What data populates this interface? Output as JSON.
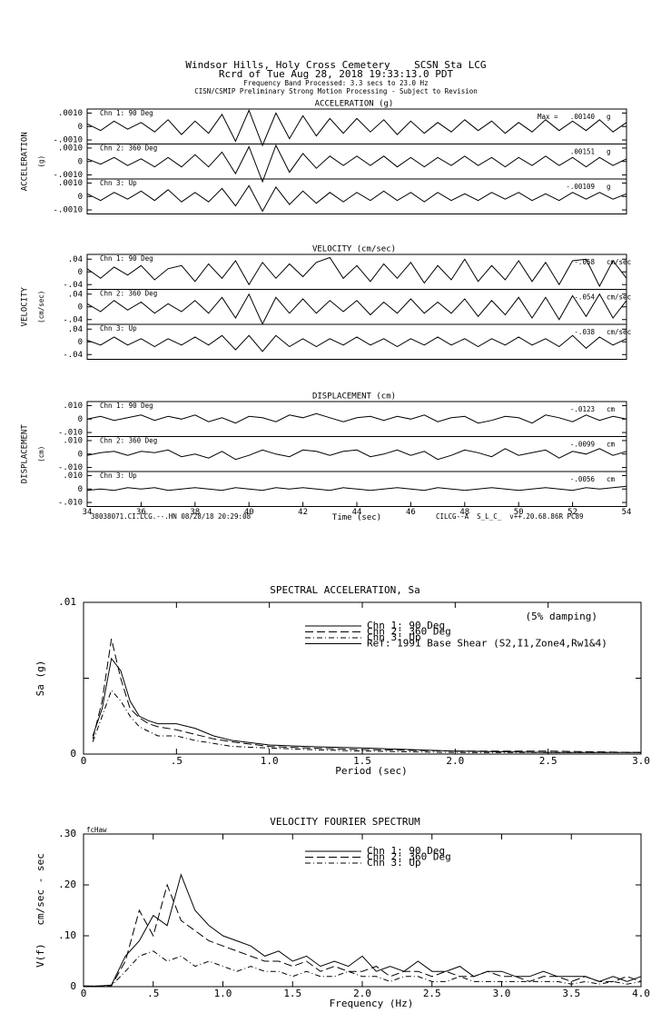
{
  "header": {
    "lines": [
      "Windsor Hills, Holy Cross Cemetery    SCSN Sta LCG",
      "Rcrd of Tue Aug 28, 2018 19:33:13.0 PDT",
      "Frequency Band Processed: 3.3 secs to 23.0 Hz",
      "CISN/CSMIP Preliminary Strong Motion Processing - Subject to Revision"
    ]
  },
  "footer": {
    "left": "38038071.CI.LCG.--.HN 08/28/18 20:29:08",
    "right": "CILCG--A  S_L_C_  v++.20.68.86R PC89"
  },
  "chart_data": [
    {
      "type": "trace",
      "title": "ACCELERATION (g)",
      "ylabel": "ACCELERATION",
      "yunit": "(g)",
      "peak_prefix": "Max =",
      "unit": "g",
      "ylim": [
        -0.0013,
        0.0013
      ],
      "yticks": [
        {
          "value": 0.001,
          "label": ".0010"
        },
        0,
        {
          "value": -0.001,
          "label": "-.0010"
        }
      ],
      "xlim": [
        34,
        54
      ],
      "x": [
        34,
        34.5,
        35,
        35.5,
        36,
        36.5,
        37,
        37.5,
        38,
        38.5,
        39,
        39.5,
        40,
        40.5,
        41,
        41.5,
        42,
        42.5,
        43,
        43.5,
        44,
        44.5,
        45,
        45.5,
        46,
        46.5,
        47,
        47.5,
        48,
        48.5,
        49,
        49.5,
        50,
        50.5,
        51,
        51.5,
        52,
        52.5,
        53,
        53.5,
        54
      ],
      "panels": [
        {
          "name": "Chn 1: 90 Deg",
          "peak": ".00140",
          "values": [
            0.0002,
            -0.0003,
            0.0004,
            -0.0002,
            0.0003,
            -0.0004,
            0.0005,
            -0.0006,
            0.0004,
            -0.0005,
            0.0009,
            -0.0011,
            0.0012,
            -0.0014,
            0.001,
            -0.0009,
            0.0008,
            -0.0007,
            0.0006,
            -0.0005,
            0.0006,
            -0.0004,
            0.0005,
            -0.0006,
            0.0004,
            -0.0005,
            0.0003,
            -0.0004,
            0.0005,
            -0.0003,
            0.0004,
            -0.0005,
            0.0003,
            -0.0004,
            0.0005,
            -0.0003,
            0.0004,
            -0.0003,
            0.0005,
            -0.0004,
            0.0003
          ]
        },
        {
          "name": "Chn 2: 360 Deg",
          "peak": ".00151",
          "values": [
            0.0002,
            -0.0002,
            0.0003,
            -0.0003,
            0.0002,
            -0.0004,
            0.0003,
            -0.0004,
            0.0005,
            -0.0004,
            0.0007,
            -0.0009,
            0.0011,
            -0.0015,
            0.0012,
            -0.0008,
            0.0006,
            -0.0005,
            0.0004,
            -0.0003,
            0.0004,
            -0.0003,
            0.0004,
            -0.0004,
            0.0003,
            -0.0004,
            0.0003,
            -0.0003,
            0.0004,
            -0.0003,
            0.0003,
            -0.0004,
            0.0003,
            -0.0003,
            0.0004,
            -0.0003,
            0.0003,
            -0.0004,
            0.0003,
            -0.0003,
            0.0002
          ]
        },
        {
          "name": "Chn 3: Up",
          "peak": "-.00109",
          "values": [
            0.0002,
            -0.0003,
            0.0003,
            -0.0002,
            0.0004,
            -0.0003,
            0.0005,
            -0.0004,
            0.0003,
            -0.0004,
            0.0006,
            -0.0007,
            0.0008,
            -0.0011,
            0.0007,
            -0.0006,
            0.0004,
            -0.0005,
            0.0003,
            -0.0004,
            0.0003,
            -0.0003,
            0.0004,
            -0.0003,
            0.0003,
            -0.0004,
            0.0003,
            -0.0003,
            0.0002,
            -0.0003,
            0.0003,
            -0.0002,
            0.0003,
            -0.0003,
            0.0002,
            -0.0003,
            0.0003,
            -0.0002,
            0.0003,
            -0.0002,
            0.0002
          ]
        }
      ]
    },
    {
      "type": "trace",
      "title": "VELOCITY (cm/sec)",
      "ylabel": "VELOCITY",
      "yunit": "(cm/sec)",
      "unit": "cm/sec",
      "ylim": [
        -0.055,
        0.055
      ],
      "yticks": [
        {
          "value": 0.04,
          "label": ".04"
        },
        0,
        {
          "value": -0.04,
          "label": "-.04"
        }
      ],
      "xlim": [
        34,
        54
      ],
      "x": [
        34,
        34.5,
        35,
        35.5,
        36,
        36.5,
        37,
        37.5,
        38,
        38.5,
        39,
        39.5,
        40,
        40.5,
        41,
        41.5,
        42,
        42.5,
        43,
        43.5,
        44,
        44.5,
        45,
        45.5,
        46,
        46.5,
        47,
        47.5,
        48,
        48.5,
        49,
        49.5,
        50,
        50.5,
        51,
        51.5,
        52,
        52.5,
        53,
        53.5,
        54
      ],
      "panels": [
        {
          "name": "Chn 1: 90 Deg",
          "peak": "-.058",
          "values": [
            0.01,
            -0.02,
            0.015,
            -0.01,
            0.02,
            -0.025,
            0.01,
            0.02,
            -0.03,
            0.025,
            -0.02,
            0.035,
            -0.04,
            0.03,
            -0.02,
            0.025,
            -0.015,
            0.03,
            0.045,
            -0.02,
            0.02,
            -0.03,
            0.025,
            -0.02,
            0.03,
            -0.035,
            0.02,
            -0.025,
            0.04,
            -0.03,
            0.02,
            -0.025,
            0.035,
            -0.03,
            0.03,
            -0.04,
            0.035,
            0.04,
            -0.045,
            0.035,
            -0.02
          ]
        },
        {
          "name": "Chn 2: 360 Deg",
          "peak": "-.054",
          "values": [
            0.01,
            -0.015,
            0.02,
            -0.01,
            0.015,
            -0.02,
            0.01,
            -0.015,
            0.02,
            -0.02,
            0.03,
            -0.035,
            0.04,
            -0.054,
            0.03,
            -0.02,
            0.025,
            -0.02,
            0.02,
            -0.015,
            0.02,
            -0.025,
            0.015,
            -0.02,
            0.025,
            -0.02,
            0.015,
            -0.02,
            0.025,
            -0.03,
            0.02,
            -0.025,
            0.03,
            -0.035,
            0.03,
            -0.04,
            0.035,
            -0.03,
            0.04,
            -0.035,
            0.02
          ]
        },
        {
          "name": "Chn 3: Up",
          "peak": "-.038",
          "values": [
            0.005,
            -0.01,
            0.015,
            -0.01,
            0.01,
            -0.015,
            0.01,
            -0.01,
            0.015,
            -0.01,
            0.02,
            -0.025,
            0.02,
            -0.03,
            0.02,
            -0.015,
            0.01,
            -0.015,
            0.01,
            -0.01,
            0.015,
            -0.01,
            0.01,
            -0.015,
            0.01,
            -0.01,
            0.015,
            -0.01,
            0.01,
            -0.015,
            0.01,
            -0.01,
            0.015,
            -0.01,
            0.01,
            -0.015,
            0.02,
            -0.02,
            0.015,
            -0.01,
            0.01
          ]
        }
      ]
    },
    {
      "type": "trace",
      "title": "DISPLACEMENT (cm)",
      "ylabel": "DISPLACEMENT",
      "yunit": "(cm)",
      "unit": "cm",
      "ylim": [
        -0.013,
        0.013
      ],
      "yticks": [
        {
          "value": 0.01,
          "label": ".010"
        },
        0,
        {
          "value": -0.01,
          "label": "-.010"
        }
      ],
      "xlim": [
        34,
        54
      ],
      "xticks": [
        34,
        36,
        38,
        40,
        42,
        44,
        46,
        48,
        50,
        52,
        54
      ],
      "xlabel": "Time (sec)",
      "x": [
        34,
        34.5,
        35,
        35.5,
        36,
        36.5,
        37,
        37.5,
        38,
        38.5,
        39,
        39.5,
        40,
        40.5,
        41,
        41.5,
        42,
        42.5,
        43,
        43.5,
        44,
        44.5,
        45,
        45.5,
        46,
        46.5,
        47,
        47.5,
        48,
        48.5,
        49,
        49.5,
        50,
        50.5,
        51,
        51.5,
        52,
        52.5,
        53,
        53.5,
        54
      ],
      "panels": [
        {
          "name": "Chn 1: 90 Deg",
          "peak": "-.0123",
          "values": [
            0,
            0.002,
            -0.001,
            0.001,
            0.003,
            -0.001,
            0.002,
            0,
            0.003,
            -0.002,
            0.001,
            -0.003,
            0.002,
            0.001,
            -0.002,
            0.003,
            0.001,
            0.004,
            0.001,
            -0.002,
            0.001,
            0.002,
            -0.001,
            0.002,
            0,
            0.003,
            -0.002,
            0.001,
            0.002,
            -0.003,
            -0.001,
            0.002,
            0.001,
            -0.003,
            0.003,
            0.001,
            -0.002,
            0.003,
            -0.001,
            0.002,
            0
          ]
        },
        {
          "name": "Chn 2: 360 Deg",
          "peak": "-.0099",
          "values": [
            -0.001,
            0.001,
            0.002,
            -0.001,
            0.002,
            0.001,
            0.003,
            -0.002,
            0,
            -0.003,
            0.002,
            -0.004,
            -0.001,
            0.003,
            0,
            -0.002,
            0.003,
            0.002,
            -0.001,
            0.002,
            0.003,
            -0.002,
            0,
            0.003,
            -0.001,
            0.002,
            -0.004,
            -0.001,
            0.003,
            0.001,
            -0.002,
            0.004,
            -0.001,
            0.001,
            0.003,
            -0.003,
            0.002,
            0,
            0.004,
            -0.001,
            0.002
          ]
        },
        {
          "name": "Chn 3: Up",
          "peak": "-.0056",
          "values": [
            -0.001,
            0,
            -0.001,
            0.001,
            0,
            0.001,
            -0.001,
            0,
            0.001,
            0,
            -0.001,
            0.001,
            0,
            -0.001,
            0.001,
            0,
            0.001,
            0,
            -0.001,
            0.001,
            0,
            -0.001,
            0,
            0.001,
            0,
            -0.001,
            0.001,
            0,
            -0.001,
            0,
            0.001,
            0,
            -0.001,
            0,
            0.001,
            0,
            -0.001,
            0.001,
            0,
            0.001,
            0.002
          ]
        }
      ]
    },
    {
      "type": "spectrum",
      "title": "SPECTRAL ACCELERATION, Sa",
      "annotation": "(5% damping)",
      "xlabel": "Period (sec)",
      "ylabel": "Sa (g)",
      "xlim": [
        0,
        3
      ],
      "xticks": [
        0,
        {
          "value": 0.5,
          "label": ".5"
        },
        {
          "value": 1,
          "label": "1.0"
        },
        1.5,
        {
          "value": 2,
          "label": "2.0"
        },
        2.5,
        {
          "value": 3,
          "label": "3.0"
        }
      ],
      "ylim": [
        0,
        0.01
      ],
      "yticks": [
        0,
        {
          "value": 0.01,
          "label": ".01"
        }
      ],
      "minor_yticks": [
        0.005
      ],
      "x": [
        0.05,
        0.1,
        0.15,
        0.2,
        0.25,
        0.3,
        0.35,
        0.4,
        0.5,
        0.6,
        0.7,
        0.8,
        1.0,
        1.2,
        1.5,
        2.0,
        2.5,
        3.0
      ],
      "series": [
        {
          "name": "Chn 1: 90 Deg",
          "color": "#000000",
          "dash": "solid",
          "values": [
            0.0012,
            0.003,
            0.0063,
            0.0055,
            0.0035,
            0.0025,
            0.0022,
            0.002,
            0.002,
            0.0017,
            0.0012,
            0.0009,
            0.0006,
            0.0005,
            0.0004,
            0.0002,
            0.0001,
            0.0001
          ]
        },
        {
          "name": "Chn 2: 360 Deg",
          "color": "#000000",
          "dash": "long-dash",
          "values": [
            0.001,
            0.0035,
            0.0076,
            0.005,
            0.003,
            0.0024,
            0.002,
            0.0018,
            0.0016,
            0.0013,
            0.001,
            0.0008,
            0.0005,
            0.0004,
            0.0003,
            0.0002,
            0.0002,
            0.0001
          ]
        },
        {
          "name": "Chn 3: Up",
          "color": "#000000",
          "dash": "dash-dot",
          "values": [
            0.0008,
            0.0025,
            0.0042,
            0.0035,
            0.0025,
            0.0018,
            0.0015,
            0.0012,
            0.0012,
            0.0009,
            0.0007,
            0.0005,
            0.0004,
            0.0003,
            0.0002,
            0.0001,
            0.0001,
            0.0001
          ]
        },
        {
          "name": "Ref: 1991 Base Shear (S2,I1,Zone4,Rw1&4)",
          "color": "#000000",
          "dash": "solid",
          "values": [
            null,
            null,
            null,
            null,
            null,
            null,
            null,
            null,
            null,
            null,
            null,
            null,
            null,
            null,
            null,
            null,
            null,
            null
          ]
        }
      ]
    },
    {
      "type": "spectrum",
      "title": "VELOCITY FOURIER SPECTRUM",
      "corner_label": "fcHaw",
      "xlabel": "Frequency (Hz)",
      "ylabel": "V(f)   cm/sec - sec",
      "xlim": [
        0,
        4
      ],
      "xticks": [
        0,
        {
          "value": 0.5,
          "label": ".5"
        },
        {
          "value": 1,
          "label": "1.0"
        },
        1.5,
        {
          "value": 2,
          "label": "2.0"
        },
        2.5,
        {
          "value": 3,
          "label": "3.0"
        },
        3.5,
        {
          "value": 4,
          "label": "4.0"
        }
      ],
      "ylim": [
        0,
        0.3
      ],
      "yticks": [
        0,
        {
          "value": 0.1,
          "label": ".10"
        },
        {
          "value": 0.2,
          "label": ".20"
        },
        {
          "value": 0.3,
          "label": ".30"
        }
      ],
      "x": [
        0,
        0.1,
        0.2,
        0.3,
        0.4,
        0.5,
        0.6,
        0.7,
        0.8,
        0.9,
        1.0,
        1.1,
        1.2,
        1.3,
        1.4,
        1.5,
        1.6,
        1.7,
        1.8,
        1.9,
        2.0,
        2.1,
        2.2,
        2.3,
        2.4,
        2.5,
        2.6,
        2.7,
        2.8,
        2.9,
        3.0,
        3.1,
        3.2,
        3.3,
        3.4,
        3.5,
        3.6,
        3.7,
        3.8,
        3.9,
        4.0
      ],
      "series": [
        {
          "name": "Chn 1: 90 Deg",
          "color": "#000000",
          "dash": "solid",
          "values": [
            0.001,
            0.001,
            0.003,
            0.06,
            0.09,
            0.14,
            0.12,
            0.22,
            0.15,
            0.12,
            0.1,
            0.09,
            0.08,
            0.06,
            0.07,
            0.05,
            0.06,
            0.04,
            0.05,
            0.04,
            0.06,
            0.03,
            0.04,
            0.03,
            0.05,
            0.03,
            0.03,
            0.04,
            0.02,
            0.03,
            0.03,
            0.02,
            0.02,
            0.03,
            0.02,
            0.02,
            0.02,
            0.01,
            0.02,
            0.01,
            0.02
          ]
        },
        {
          "name": "Chn 2: 360 Deg",
          "color": "#000000",
          "dash": "long-dash",
          "values": [
            0.001,
            0.001,
            0.002,
            0.05,
            0.15,
            0.1,
            0.2,
            0.13,
            0.11,
            0.09,
            0.08,
            0.07,
            0.06,
            0.05,
            0.05,
            0.04,
            0.05,
            0.03,
            0.04,
            0.03,
            0.03,
            0.04,
            0.02,
            0.03,
            0.03,
            0.02,
            0.03,
            0.02,
            0.02,
            0.03,
            0.02,
            0.02,
            0.01,
            0.02,
            0.02,
            0.01,
            0.02,
            0.01,
            0.01,
            0.02,
            0.01
          ]
        },
        {
          "name": "Chn 3: Up",
          "color": "#000000",
          "dash": "dash-dot",
          "values": [
            0.001,
            0.001,
            0.002,
            0.03,
            0.06,
            0.07,
            0.05,
            0.06,
            0.04,
            0.05,
            0.04,
            0.03,
            0.04,
            0.03,
            0.03,
            0.02,
            0.03,
            0.02,
            0.02,
            0.03,
            0.02,
            0.02,
            0.01,
            0.02,
            0.02,
            0.01,
            0.01,
            0.02,
            0.01,
            0.01,
            0.01,
            0.01,
            0.01,
            0.01,
            0.01,
            0.005,
            0.01,
            0.005,
            0.01,
            0.005,
            0.01
          ]
        }
      ]
    }
  ]
}
